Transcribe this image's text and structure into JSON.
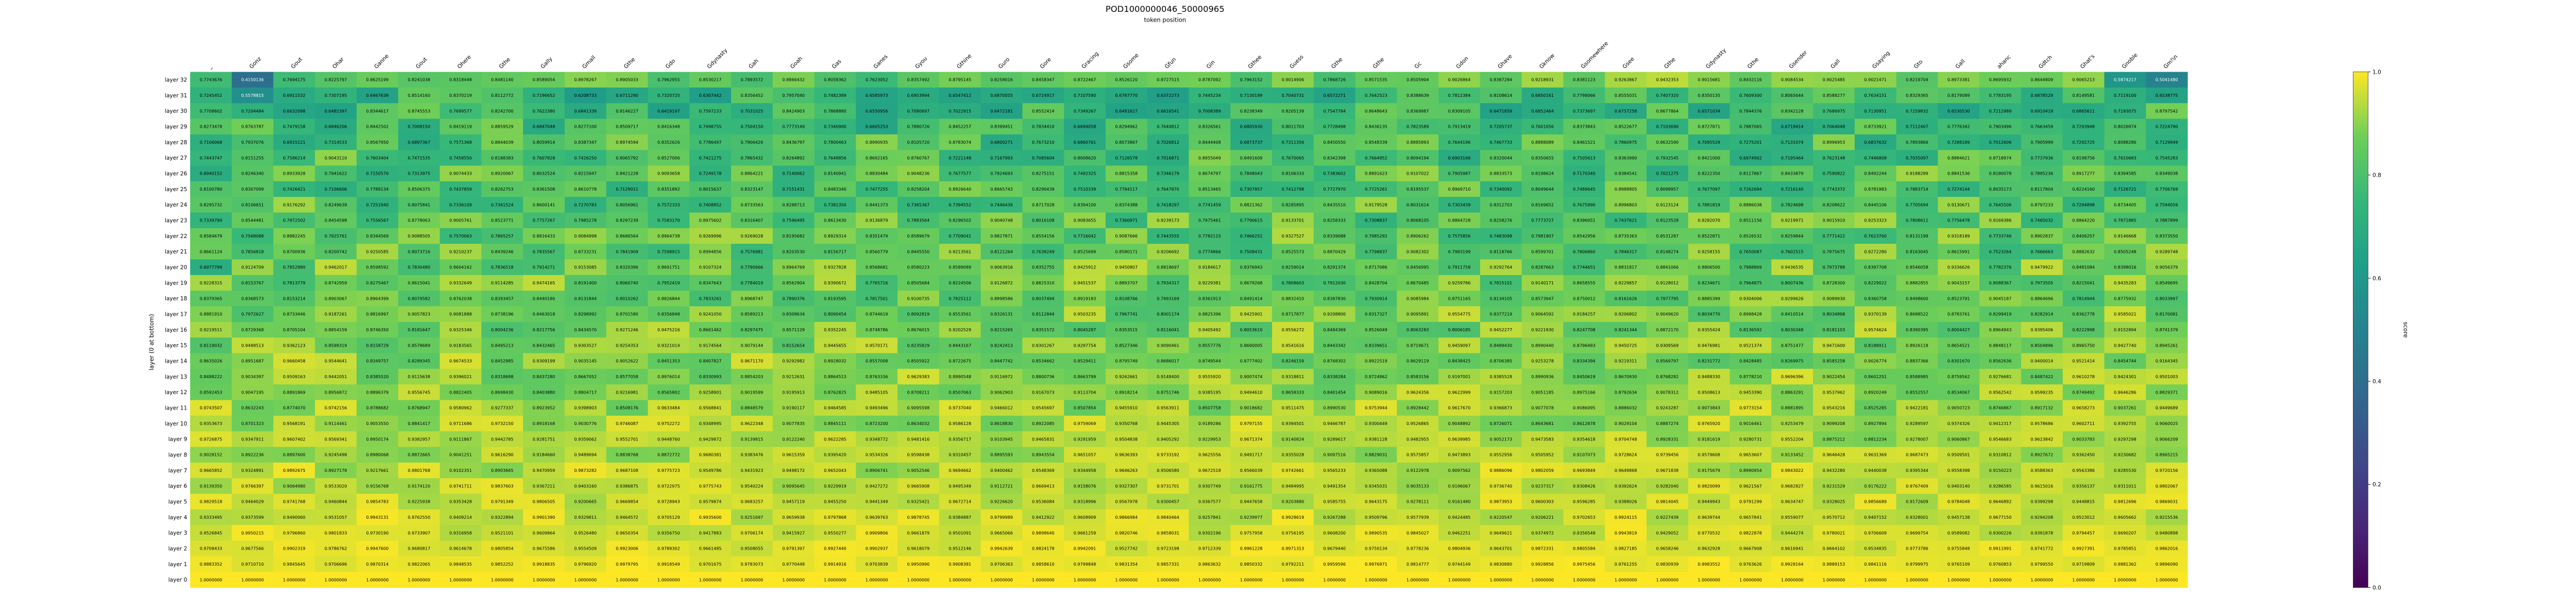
{
  "chart_data": {
    "type": "heatmap",
    "title": "POD1000000046_50000965",
    "subtitle": "token position",
    "ylabel": "layer (0 at bottom)",
    "colorbar_label": "score",
    "colorbar_ticks": [
      "0.0",
      "0.2",
      "0.4",
      "0.6",
      "0.8",
      "1.0"
    ],
    "value_range": [
      0,
      1
    ],
    "colormap": "viridis",
    "x_tokens": [
      "_",
      "Gonz",
      "Gout",
      "Ohar",
      "Ganne",
      "Gout",
      "Ohere",
      "Gthe",
      "Gally",
      "Gmall",
      "Gthe",
      "Gdo",
      "Gdynasty",
      "Gah",
      "Goah",
      "Gas",
      "Ganes",
      "Gyou",
      "Gthine",
      "Guro",
      "Gore",
      "Gracing",
      "Gsome",
      "Gfun",
      "Gin",
      "Gthee",
      "Guess",
      "Gthe",
      "Gthe",
      "Gc",
      "Gdon",
      "Ghave",
      "Gknow",
      "Gsomewhere",
      "Gsee",
      "Gthe",
      "Gdynasty",
      "Gthe",
      "Gsender",
      "Gall",
      "Gsaying",
      "Gto",
      "Gall",
      "ahanc",
      "Gdtch",
      "Ghat's",
      "Gnoble",
      "Gm!\\n"
    ],
    "y_layers": [
      "layer 32",
      "layer 31",
      "layer 30",
      "layer 29",
      "layer 28",
      "layer 27",
      "layer 26",
      "layer 25",
      "layer 24",
      "layer 23",
      "layer 22",
      "layer 21",
      "layer 20",
      "layer 19",
      "layer 18",
      "layer 17",
      "layer 16",
      "layer 15",
      "layer 14",
      "layer 13",
      "layer 12",
      "layer 11",
      "layer 10",
      "layer 9",
      "layer 8",
      "layer 7",
      "layer 6",
      "layer 5",
      "layer 4",
      "layer 3",
      "layer 2",
      "layer 1",
      "layer 0"
    ],
    "row_ranges": [
      [
        0.6,
        0.82
      ],
      [
        0.62,
        0.86
      ],
      [
        0.64,
        0.88
      ],
      [
        0.66,
        0.89
      ],
      [
        0.67,
        0.9
      ],
      [
        0.69,
        0.91
      ],
      [
        0.7,
        0.92
      ],
      [
        0.71,
        0.92
      ],
      [
        0.72,
        0.93
      ],
      [
        0.73,
        0.93
      ],
      [
        0.74,
        0.94
      ],
      [
        0.75,
        0.94
      ],
      [
        0.76,
        0.95
      ],
      [
        0.77,
        0.95
      ],
      [
        0.78,
        0.95
      ],
      [
        0.79,
        0.96
      ],
      [
        0.8,
        0.96
      ],
      [
        0.81,
        0.96
      ],
      [
        0.82,
        0.97
      ],
      [
        0.83,
        0.97
      ],
      [
        0.84,
        0.97
      ],
      [
        0.85,
        0.98
      ],
      [
        0.86,
        0.98
      ],
      [
        0.87,
        0.98
      ],
      [
        0.88,
        0.98
      ],
      [
        0.89,
        0.99
      ],
      [
        0.9,
        0.99
      ],
      [
        0.91,
        0.99
      ],
      [
        0.92,
        0.995
      ],
      [
        0.93,
        0.996
      ],
      [
        0.95,
        0.998
      ],
      [
        0.97,
        0.999
      ],
      [
        1.0,
        1.0
      ]
    ],
    "highlights": [
      {
        "row": "layer 32",
        "cols": [
          0,
          1,
          2,
          46,
          47
        ],
        "values": [
          0.7743676,
          0.4150136,
          0.7694175,
          0.5874217,
          0.504148
        ]
      },
      {
        "row": "layer 31",
        "cols": [
          1
        ],
        "values": [
          0.5578815
        ]
      },
      {
        "row": "layer 26",
        "cols": [
          0
        ],
        "values": [
          0.6940152
        ]
      },
      {
        "row": "layer 20",
        "cols": [
          0
        ],
        "values": [
          0.6977799
        ]
      }
    ],
    "first_row_samples": [
      "0.7743676",
      "0.4150136",
      "0.7694175",
      "0.8225797",
      "0.8625199",
      "0.8241038",
      "0.8318448",
      "0.8481140",
      "0.8589054",
      "0.8978267",
      "0.8905033",
      "0.7962955",
      "0.8530217",
      "0.7893572",
      "0.8866432",
      "0.8058362",
      "0.7623052",
      "0.8357492",
      "0.8795145",
      "0.8258016",
      "0.8458347",
      "0.8722467",
      "0.8526120",
      "0.8727515",
      "0.8787092",
      "0.7963152",
      "0.9014906",
      "0.7868726",
      "0.8571535",
      "0.8505904",
      "0.9026864",
      "0.8387284",
      "0.9218931",
      "0.8381123",
      "0.9263867",
      "0.9432353",
      "0.9015681",
      "0.8432116",
      "0.9084534",
      "0.9025485",
      "0.9021471",
      "0.8219704",
      "0.8973381",
      "0.8695932",
      "0.8644809",
      "0.9065213",
      "0.5874217",
      "0.5041480"
    ]
  }
}
